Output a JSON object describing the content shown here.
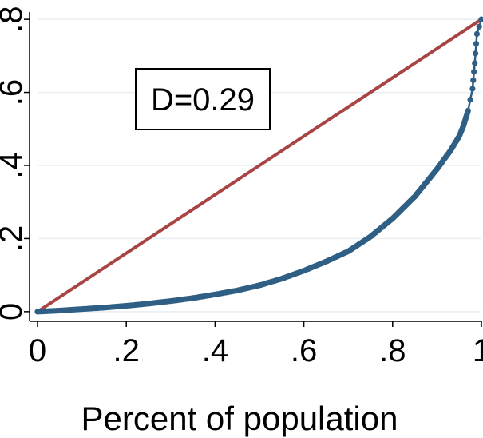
{
  "chart_data": {
    "type": "line",
    "title": "",
    "xlabel": "Percent of population",
    "ylabel": "",
    "xlim": [
      0,
      1
    ],
    "ylim": [
      -0.02,
      0.82
    ],
    "grid": true,
    "x_ticks": [
      {
        "value": 0,
        "label": "0"
      },
      {
        "value": 0.2,
        "label": ".2"
      },
      {
        "value": 0.4,
        "label": ".4"
      },
      {
        "value": 0.6,
        "label": ".6"
      },
      {
        "value": 0.8,
        "label": ".8"
      },
      {
        "value": 1,
        "label": "1"
      }
    ],
    "y_ticks": [
      {
        "value": 0,
        "label": "0"
      },
      {
        "value": 0.2,
        "label": ".2"
      },
      {
        "value": 0.4,
        "label": ".4"
      },
      {
        "value": 0.6,
        "label": ".6"
      },
      {
        "value": 0.8,
        "label": ".8"
      }
    ],
    "annotation": "D=0.29",
    "series": [
      {
        "color": "#a84444",
        "style": "line",
        "points": [
          [
            0,
            0
          ],
          [
            1,
            0.8
          ]
        ]
      },
      {
        "color": "#2f5f84",
        "style": "line-markers",
        "points": [
          [
            0,
            0
          ],
          [
            0.05,
            0.003
          ],
          [
            0.1,
            0.007
          ],
          [
            0.15,
            0.011
          ],
          [
            0.2,
            0.016
          ],
          [
            0.25,
            0.022
          ],
          [
            0.3,
            0.029
          ],
          [
            0.35,
            0.037
          ],
          [
            0.4,
            0.047
          ],
          [
            0.45,
            0.058
          ],
          [
            0.5,
            0.072
          ],
          [
            0.55,
            0.09
          ],
          [
            0.6,
            0.112
          ],
          [
            0.65,
            0.137
          ],
          [
            0.7,
            0.165
          ],
          [
            0.75,
            0.205
          ],
          [
            0.8,
            0.255
          ],
          [
            0.85,
            0.315
          ],
          [
            0.9,
            0.39
          ],
          [
            0.93,
            0.44
          ],
          [
            0.95,
            0.48
          ],
          [
            0.96,
            0.51
          ],
          [
            0.97,
            0.55
          ],
          [
            0.98,
            0.61
          ],
          [
            0.985,
            0.68
          ],
          [
            0.99,
            0.76
          ],
          [
            1,
            0.8
          ]
        ]
      }
    ]
  }
}
